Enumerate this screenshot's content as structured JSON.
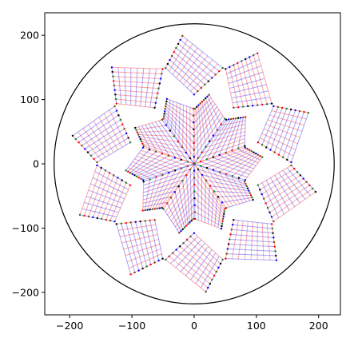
{
  "chart_data": {
    "type": "line",
    "title": "",
    "xlabel": "",
    "ylabel": "",
    "xlim": [
      -240,
      235
    ],
    "ylim": [
      -235,
      235
    ],
    "x_ticks": [
      -200,
      -100,
      0,
      100,
      200
    ],
    "y_ticks": [
      -200,
      -100,
      0,
      100,
      200
    ],
    "x_tick_labels": [
      "−200",
      "−100",
      "0",
      "100",
      "200"
    ],
    "y_tick_labels": [
      "−200",
      "−100",
      "0",
      "100",
      "200"
    ],
    "grid": false,
    "circle": {
      "center": [
        0,
        0
      ],
      "radius": 225,
      "color": "#000000"
    },
    "pattern": {
      "kites": 10,
      "rings": 2,
      "grid_divisions": 8,
      "ring_radii": [
        110,
        200
      ],
      "apex_rotation_deg": 36,
      "colors": [
        "#ff0000",
        "#0000ff"
      ],
      "node_colors": [
        "#ff0000",
        "#0000ff",
        "#1f7a1f",
        "#7a4a00",
        "#000000"
      ],
      "line_opacity": 0.35
    }
  }
}
